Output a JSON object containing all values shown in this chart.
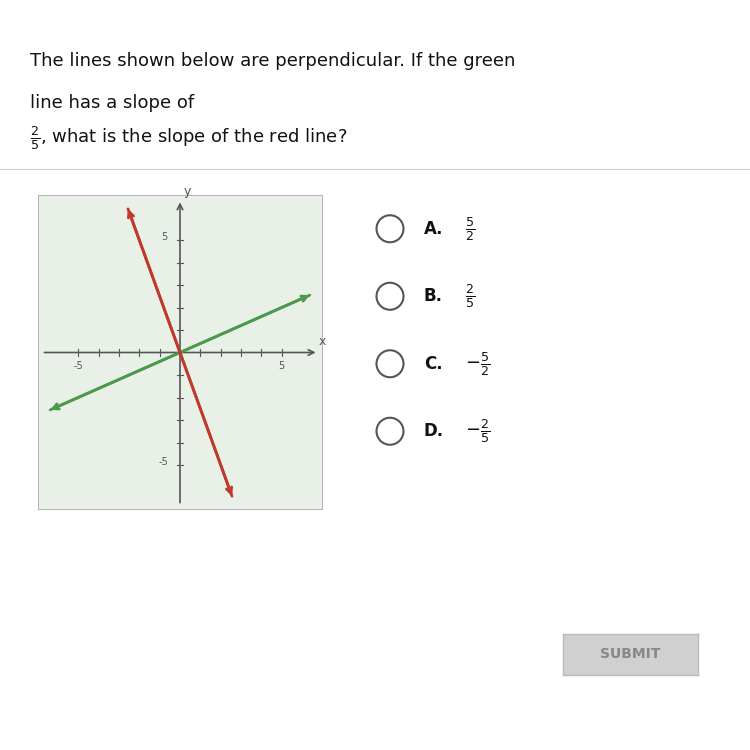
{
  "title_line1": "The lines shown below are perpendicular. If the green",
  "title_line2": "line has a slope of",
  "bg_color": "#ffffff",
  "graph_bg": "#e8f0e8",
  "green_slope": 0.4,
  "red_slope": -2.5,
  "choices": [
    {
      "label": "A.",
      "num": "5",
      "den": "2",
      "sign": ""
    },
    {
      "label": "B.",
      "num": "2",
      "den": "5",
      "sign": ""
    },
    {
      "label": "C.",
      "num": "5",
      "den": "2",
      "sign": "-"
    },
    {
      "label": "D.",
      "num": "2",
      "den": "5",
      "sign": "-"
    }
  ],
  "green_color": "#4a9a4a",
  "red_color": "#c0392b",
  "axis_color": "#555555",
  "tick_color": "#555555",
  "submit_bg": "#d0d0d0",
  "submit_text": "SUBMIT"
}
